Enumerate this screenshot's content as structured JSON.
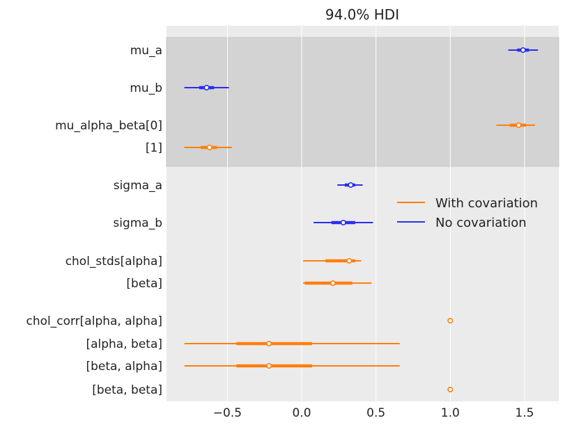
{
  "chart_data": {
    "type": "forest",
    "title": "94.0% HDI",
    "xlabel": "",
    "ylabel": "",
    "xlim": [
      -0.91,
      1.73
    ],
    "xticks": [
      -0.5,
      0.0,
      0.5,
      1.0,
      1.5
    ],
    "xtick_labels": [
      "−0.5",
      "0.0",
      "0.5",
      "1.0",
      "1.5"
    ],
    "grid": true,
    "legend_position": "right",
    "colors": {
      "background": "#ebebeb",
      "shaded_band": "#d3d3d3",
      "grid": "#ffffff",
      "with_covariation": "#ff7f0e",
      "no_covariation": "#2a2eec"
    },
    "legend": [
      {
        "label": "With covariation",
        "color_key": "with_covariation"
      },
      {
        "label": "No covariation",
        "color_key": "no_covariation"
      }
    ],
    "row_labels": [
      "mu_a",
      "mu_b",
      "mu_alpha_beta[0]",
      "[1]",
      "sigma_a",
      "sigma_b",
      "chol_stds[alpha]",
      "[beta]",
      "chol_corr[alpha, alpha]",
      "[alpha, beta]",
      "[beta, alpha]",
      "[beta, beta]"
    ],
    "shaded_groups": [
      [
        0,
        3
      ]
    ],
    "series": [
      {
        "name": "No covariation",
        "color_key": "no_covariation",
        "intervals": [
          {
            "row": 0,
            "hdi_low": 1.39,
            "hdi_high": 1.59,
            "iqr_low": 1.45,
            "iqr_high": 1.53,
            "point": 1.49
          },
          {
            "row": 1,
            "hdi_low": -0.79,
            "hdi_high": -0.49,
            "iqr_low": -0.69,
            "iqr_high": -0.59,
            "point": -0.64
          },
          {
            "row": 4,
            "hdi_low": 0.24,
            "hdi_high": 0.41,
            "iqr_low": 0.29,
            "iqr_high": 0.36,
            "point": 0.33
          },
          {
            "row": 5,
            "hdi_low": 0.08,
            "hdi_high": 0.48,
            "iqr_low": 0.2,
            "iqr_high": 0.36,
            "point": 0.28
          }
        ]
      },
      {
        "name": "With covariation",
        "color_key": "with_covariation",
        "intervals": [
          {
            "row": 2,
            "hdi_low": 1.31,
            "hdi_high": 1.57,
            "iqr_low": 1.4,
            "iqr_high": 1.51,
            "point": 1.46
          },
          {
            "row": 3,
            "hdi_low": -0.79,
            "hdi_high": -0.47,
            "iqr_low": -0.68,
            "iqr_high": -0.57,
            "point": -0.62
          },
          {
            "row": 6,
            "hdi_low": 0.01,
            "hdi_high": 0.4,
            "iqr_low": 0.16,
            "iqr_high": 0.36,
            "point": 0.32
          },
          {
            "row": 7,
            "hdi_low": 0.01,
            "hdi_high": 0.47,
            "iqr_low": 0.02,
            "iqr_high": 0.34,
            "point": 0.21
          },
          {
            "row": 8,
            "hdi_low": null,
            "hdi_high": null,
            "iqr_low": null,
            "iqr_high": null,
            "point": 1.0
          },
          {
            "row": 9,
            "hdi_low": -0.79,
            "hdi_high": 0.66,
            "iqr_low": -0.44,
            "iqr_high": 0.07,
            "point": -0.22
          },
          {
            "row": 10,
            "hdi_low": -0.79,
            "hdi_high": 0.66,
            "iqr_low": -0.44,
            "iqr_high": 0.07,
            "point": -0.22
          },
          {
            "row": 11,
            "hdi_low": null,
            "hdi_high": null,
            "iqr_low": null,
            "iqr_high": null,
            "point": 1.0
          }
        ]
      }
    ]
  }
}
